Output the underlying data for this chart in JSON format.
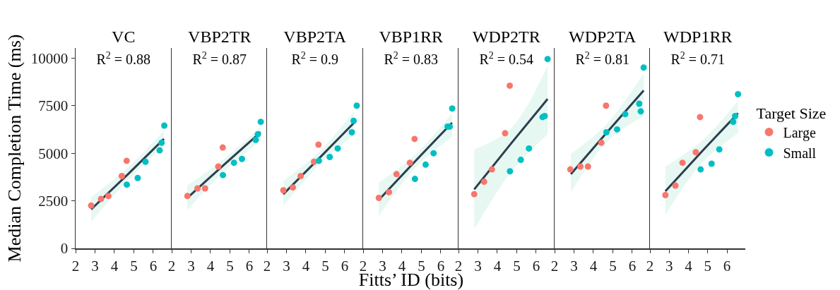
{
  "chart_data": [
    {
      "type": "scatter",
      "title": "VC",
      "subtitle": "R$^{2}$ = 0.88",
      "ylabel": "Median Completion Time (ms)",
      "xlim": [
        2,
        6.95
      ],
      "xticks": [
        2,
        3,
        4,
        5,
        6
      ],
      "ylim": [
        0,
        10530
      ],
      "yticks": [
        0,
        2500,
        5000,
        7500,
        10000
      ],
      "grid": false,
      "legend": false,
      "marker": "circle",
      "series": [
        {
          "type": "line",
          "marker": "none",
          "color": "#2c3e50",
          "x": [
            2.8,
            4.7,
            6.55
          ],
          "values": [
            2050,
            3900,
            5750
          ],
          "lower": [
            1400,
            3600,
            5350
          ],
          "upper": [
            2700,
            4250,
            6200
          ]
        },
        {
          "color": "#f8766d",
          "x": [
            2.8,
            3.31,
            3.69,
            4.38,
            4.63
          ],
          "values": [
            2250,
            2600,
            2750,
            3800,
            4600
          ]
        },
        {
          "color": "#00bfc4",
          "x": [
            4.64,
            5.2,
            5.6,
            6.33,
            6.43,
            6.57
          ],
          "values": [
            3350,
            3700,
            4550,
            5150,
            5550,
            6450
          ]
        }
      ]
    },
    {
      "type": "scatter",
      "title": "VBP2TR",
      "subtitle": "R$^{2}$ = 0.87",
      "xlim": [
        2,
        6.95
      ],
      "xticks": [
        2,
        3,
        4,
        5,
        6
      ],
      "ylim": [
        0,
        10530
      ],
      "tick_labels": "x",
      "grid": false,
      "legend": false,
      "marker": "circle",
      "series": [
        {
          "type": "line",
          "marker": "none",
          "color": "#2c3e50",
          "x": [
            2.8,
            4.7,
            6.58
          ],
          "values": [
            2650,
            4400,
            6100
          ],
          "lower": [
            2000,
            4050,
            5650
          ],
          "upper": [
            3300,
            4700,
            6400
          ]
        },
        {
          "color": "#f8766d",
          "x": [
            2.81,
            3.33,
            3.72,
            4.4,
            4.63
          ],
          "values": [
            2750,
            3150,
            3150,
            4300,
            5300
          ]
        },
        {
          "color": "#00bfc4",
          "x": [
            4.64,
            5.21,
            5.62,
            6.33,
            6.44,
            6.59
          ],
          "values": [
            3850,
            4500,
            4700,
            5700,
            6000,
            6650
          ]
        }
      ]
    },
    {
      "type": "scatter",
      "title": "VBP2TA",
      "subtitle": "R$^{2}$ = 0.9",
      "xlim": [
        2,
        6.95
      ],
      "xticks": [
        2,
        3,
        4,
        5,
        6
      ],
      "ylim": [
        0,
        10530
      ],
      "tick_labels": "x",
      "grid": false,
      "legend": false,
      "marker": "circle",
      "series": [
        {
          "type": "line",
          "marker": "none",
          "color": "#2c3e50",
          "x": [
            2.84,
            4.7,
            6.48
          ],
          "values": [
            2850,
            4750,
            6600
          ],
          "lower": [
            2250,
            4400,
            5950
          ],
          "upper": [
            3550,
            5100,
            7200
          ]
        },
        {
          "color": "#f8766d",
          "x": [
            2.84,
            3.33,
            3.73,
            4.42,
            4.65
          ],
          "values": [
            3050,
            3200,
            3800,
            4550,
            5450
          ]
        },
        {
          "color": "#00bfc4",
          "x": [
            4.67,
            5.23,
            5.64,
            6.37,
            6.46,
            6.62
          ],
          "values": [
            4600,
            4800,
            5250,
            6100,
            6700,
            7500
          ]
        }
      ]
    },
    {
      "type": "scatter",
      "title": "VBP1RR",
      "subtitle": "R$^{2}$ = 0.83",
      "xlabel": "Fitts’ ID (bits)",
      "xlim": [
        2,
        6.95
      ],
      "xticks": [
        2,
        3,
        4,
        5,
        6
      ],
      "ylim": [
        0,
        10530
      ],
      "tick_labels": "x",
      "grid": false,
      "legend": false,
      "marker": "circle",
      "series": [
        {
          "type": "line",
          "marker": "none",
          "color": "#2c3e50",
          "x": [
            2.81,
            4.7,
            6.58
          ],
          "values": [
            2550,
            4600,
            6600
          ],
          "lower": [
            1700,
            4250,
            5850
          ],
          "upper": [
            3450,
            4950,
            7100
          ]
        },
        {
          "color": "#f8766d",
          "x": [
            2.81,
            3.33,
            3.72,
            4.41,
            4.65
          ],
          "values": [
            2650,
            2950,
            3900,
            4500,
            5750
          ]
        },
        {
          "color": "#00bfc4",
          "x": [
            4.67,
            5.22,
            5.63,
            6.35,
            6.46,
            6.59
          ],
          "values": [
            3650,
            4400,
            5000,
            6400,
            6400,
            7350
          ]
        }
      ]
    },
    {
      "type": "scatter",
      "title": "WDP2TR",
      "subtitle": "R$^{2}$ = 0.54",
      "xlim": [
        2,
        6.95
      ],
      "xticks": [
        2,
        3,
        4,
        5,
        6
      ],
      "ylim": [
        0,
        10530
      ],
      "tick_labels": "x",
      "grid": false,
      "legend": false,
      "marker": "circle",
      "series": [
        {
          "type": "line",
          "marker": "none",
          "color": "#2c3e50",
          "x": [
            2.81,
            4.7,
            6.59
          ],
          "values": [
            3100,
            5500,
            7850
          ],
          "lower": [
            1000,
            4000,
            6000
          ],
          "upper": [
            5200,
            6300,
            9600
          ]
        },
        {
          "color": "#f8766d",
          "x": [
            2.81,
            3.32,
            3.72,
            4.4,
            4.64
          ],
          "values": [
            2850,
            3500,
            4150,
            6050,
            8550
          ]
        },
        {
          "color": "#00bfc4",
          "x": [
            4.65,
            5.21,
            5.63,
            6.33,
            6.44,
            6.59
          ],
          "values": [
            4050,
            4650,
            5250,
            6900,
            6950,
            9950
          ]
        }
      ]
    },
    {
      "type": "scatter",
      "title": "WDP2TA",
      "subtitle": "R$^{2}$ = 0.81",
      "xlim": [
        2,
        6.95
      ],
      "xticks": [
        2,
        3,
        4,
        5,
        6
      ],
      "ylim": [
        0,
        10530
      ],
      "tick_labels": "x",
      "grid": false,
      "legend": false,
      "marker": "circle",
      "series": [
        {
          "type": "line",
          "marker": "none",
          "color": "#2c3e50",
          "x": [
            2.84,
            4.7,
            6.59
          ],
          "values": [
            3900,
            6100,
            8300
          ],
          "lower": [
            2950,
            5600,
            6950
          ],
          "upper": [
            4950,
            6550,
            9200
          ]
        },
        {
          "color": "#f8766d",
          "x": [
            2.81,
            3.33,
            3.72,
            4.41,
            4.65
          ],
          "values": [
            4150,
            4300,
            4300,
            5550,
            7500
          ]
        },
        {
          "color": "#00bfc4",
          "x": [
            4.67,
            5.22,
            5.64,
            6.36,
            6.44,
            6.59
          ],
          "values": [
            6100,
            6250,
            7050,
            7600,
            7200,
            9500
          ]
        }
      ]
    },
    {
      "type": "scatter",
      "title": "WDP1RR",
      "subtitle": "R$^{2}$ = 0.71",
      "legend_title": "Target Size",
      "xlim": [
        2,
        6.95
      ],
      "xticks": [
        2,
        3,
        4,
        5,
        6
      ],
      "ylim": [
        0,
        10530
      ],
      "tick_labels": "x",
      "grid": false,
      "legend": "right",
      "marker": "circle",
      "series": [
        {
          "type": "line",
          "marker": "none",
          "color": "#2c3e50",
          "x": [
            2.8,
            4.7,
            6.57
          ],
          "values": [
            3000,
            5100,
            7100
          ],
          "lower": [
            1750,
            4500,
            6050
          ],
          "upper": [
            4300,
            5650,
            7750
          ]
        },
        {
          "name": "Large",
          "color": "#f8766d",
          "x": [
            2.8,
            3.32,
            3.69,
            4.38,
            4.6
          ],
          "values": [
            2800,
            3300,
            4500,
            5050,
            6900
          ]
        },
        {
          "name": "Small",
          "color": "#00bfc4",
          "x": [
            4.63,
            5.2,
            5.6,
            6.32,
            6.42,
            6.57
          ],
          "values": [
            4150,
            4450,
            5200,
            6650,
            6950,
            8100
          ]
        }
      ]
    }
  ]
}
